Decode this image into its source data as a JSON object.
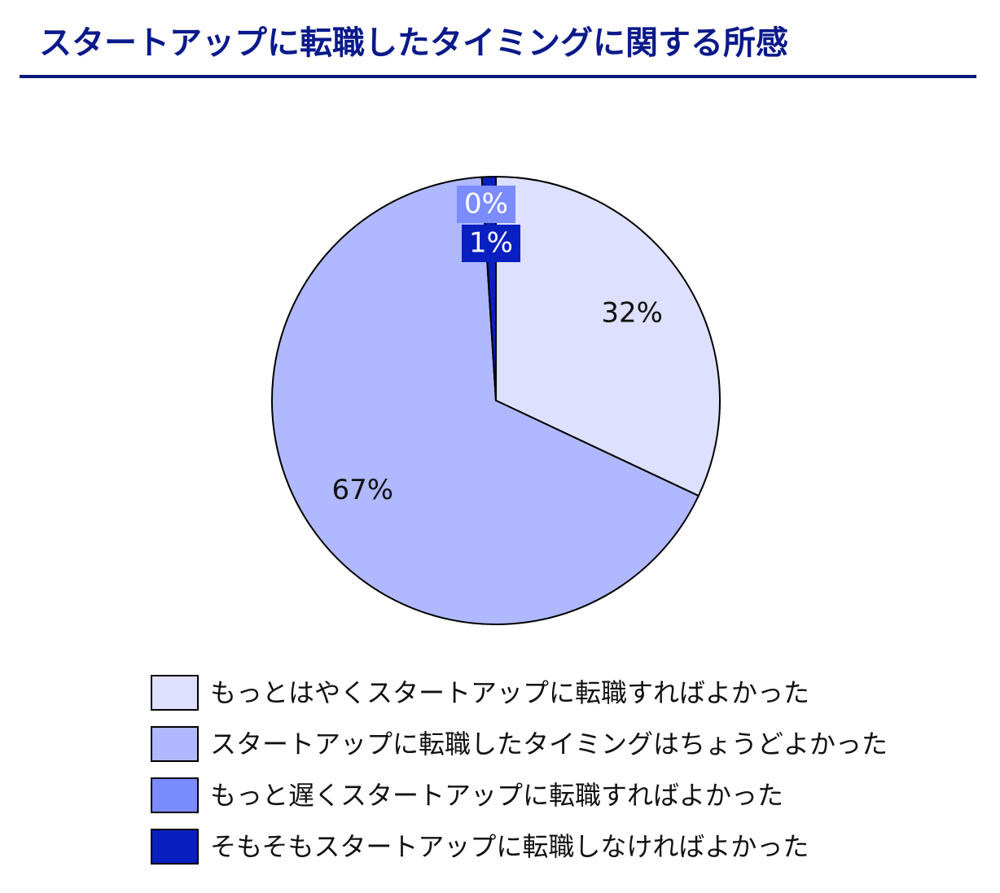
{
  "chart_data": {
    "type": "pie",
    "title": "スタートアップに転職したタイミングに関する所感",
    "categories": [
      "もっとはやくスタートアップに転職すればよかった",
      "スタートアップに転職したタイミングはちょうどよかった",
      "もっと遅くスタートアップに転職すればよかった",
      "そもそもスタートアップに転職しなければよかった"
    ],
    "values": [
      32,
      67,
      0,
      1
    ],
    "value_labels": [
      "32%",
      "67%",
      "0%",
      "1%"
    ],
    "colors": [
      "#dde0ff",
      "#b0b9ff",
      "#7b8cff",
      "#0a1fc0"
    ]
  }
}
